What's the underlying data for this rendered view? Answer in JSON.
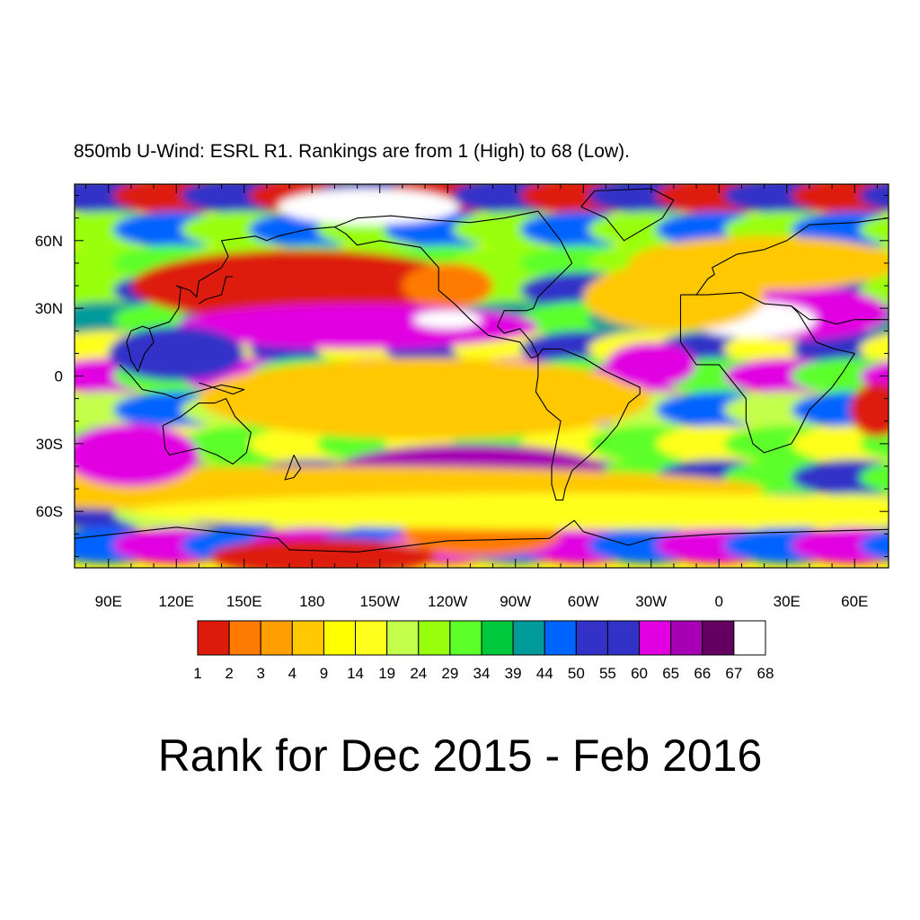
{
  "subtitle": "850mb U-Wind: ESRL R1. Rankings are from 1 (High) to 68 (Low).",
  "title": "Rank for Dec 2015 - Feb 2016",
  "map": {
    "projection": "cylindrical equidistant",
    "lon_range": [
      75,
      435
    ],
    "lat_range": [
      -85,
      85
    ],
    "lon_tick_labels": [
      {
        "lon": 90,
        "label": "90E"
      },
      {
        "lon": 120,
        "label": "120E"
      },
      {
        "lon": 150,
        "label": "150E"
      },
      {
        "lon": 180,
        "label": "180"
      },
      {
        "lon": 210,
        "label": "150W"
      },
      {
        "lon": 240,
        "label": "120W"
      },
      {
        "lon": 270,
        "label": "90W"
      },
      {
        "lon": 300,
        "label": "60W"
      },
      {
        "lon": 330,
        "label": "30W"
      },
      {
        "lon": 360,
        "label": "0"
      },
      {
        "lon": 390,
        "label": "30E"
      },
      {
        "lon": 420,
        "label": "60E"
      }
    ],
    "lat_tick_labels": [
      {
        "lat": 60,
        "label": "60N"
      },
      {
        "lat": 30,
        "label": "30N"
      },
      {
        "lat": 0,
        "label": "0"
      },
      {
        "lat": -30,
        "label": "30S"
      },
      {
        "lat": -60,
        "label": "60S"
      }
    ],
    "field": "850mb U-Wind rank",
    "rank_range": [
      1,
      68
    ],
    "coastlines": true,
    "us_state_boundaries": true
  },
  "colorbar": {
    "colors": [
      "#dd1b0b",
      "#ff7a00",
      "#ff9e00",
      "#ffc800",
      "#ffff00",
      "#ffff1e",
      "#c3ff4b",
      "#98ff0c",
      "#5cff2a",
      "#00c83c",
      "#009a9a",
      "#0064ff",
      "#3232c8",
      "#3232c8",
      "#e100e1",
      "#a700b4",
      "#64005f",
      "#ffffff"
    ],
    "labels": [
      "1",
      "2",
      "3",
      "4",
      "9",
      "14",
      "19",
      "24",
      "29",
      "34",
      "39",
      "44",
      "50",
      "55",
      "60",
      "65",
      "66",
      "67",
      "68"
    ]
  }
}
